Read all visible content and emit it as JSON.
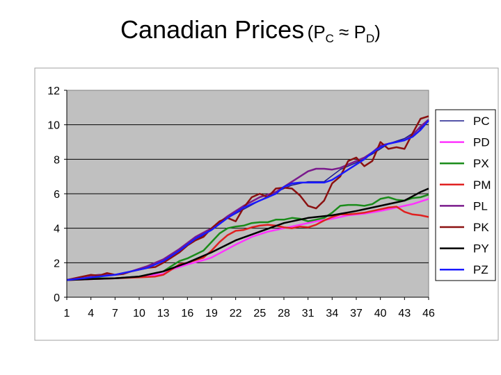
{
  "slide": {
    "title": "Canadian Prices",
    "subtitle_open": "(P",
    "subtitle_sub1": "C",
    "subtitle_approx": " ≈ P",
    "subtitle_sub2": "D",
    "subtitle_close": ")"
  },
  "chart_data": {
    "type": "line",
    "x_ticks": [
      "1",
      "4",
      "7",
      "10",
      "13",
      "16",
      "19",
      "22",
      "25",
      "28",
      "31",
      "34",
      "37",
      "40",
      "43",
      "46"
    ],
    "y_ticks": [
      "0",
      "2",
      "4",
      "6",
      "8",
      "10",
      "12"
    ],
    "ylim": [
      0,
      12
    ],
    "xlim": [
      1,
      46
    ],
    "grid": true,
    "legend_position": "right",
    "plot_background": "#c0c0c0",
    "series": [
      {
        "name": "PC",
        "color": "#1a1a8c",
        "width": 1.5,
        "x": [
          1,
          3,
          5,
          7,
          9,
          11,
          13,
          15,
          17,
          19,
          21,
          23,
          25,
          27,
          29,
          31,
          33,
          35,
          37,
          39,
          41,
          43,
          45,
          46
        ],
        "y": [
          1.0,
          1.1,
          1.2,
          1.3,
          1.5,
          1.7,
          2.1,
          2.7,
          3.3,
          3.9,
          4.6,
          5.1,
          5.6,
          6.1,
          6.5,
          6.7,
          6.7,
          7.4,
          7.8,
          8.3,
          8.9,
          9.2,
          9.8,
          10.2
        ]
      },
      {
        "name": "PD",
        "color": "#ff33ff",
        "width": 2.5,
        "x": [
          1,
          4,
          7,
          10,
          13,
          14,
          16,
          18,
          19,
          20,
          22,
          24,
          26,
          28,
          30,
          32,
          34,
          36,
          38,
          40,
          42,
          44,
          46
        ],
        "y": [
          1.0,
          1.05,
          1.1,
          1.2,
          1.35,
          1.6,
          1.9,
          2.15,
          2.3,
          2.55,
          3.05,
          3.5,
          3.8,
          4.0,
          4.2,
          4.4,
          4.55,
          4.75,
          4.85,
          5.0,
          5.2,
          5.4,
          5.7
        ]
      },
      {
        "name": "PX",
        "color": "#1a8c1a",
        "width": 2.5,
        "x": [
          1,
          4,
          7,
          10,
          12,
          13,
          14,
          15,
          16,
          18,
          19,
          20,
          21,
          22,
          23,
          24,
          25,
          26,
          27,
          28,
          29,
          30,
          31,
          32,
          33,
          34,
          35,
          36,
          37,
          38,
          39,
          40,
          41,
          42,
          43,
          44,
          45,
          46
        ],
        "y": [
          1.0,
          1.1,
          1.1,
          1.2,
          1.4,
          1.5,
          1.8,
          2.1,
          2.25,
          2.7,
          3.2,
          3.7,
          4.0,
          4.1,
          4.15,
          4.3,
          4.35,
          4.35,
          4.5,
          4.5,
          4.6,
          4.55,
          4.4,
          4.5,
          4.6,
          4.9,
          5.3,
          5.35,
          5.35,
          5.3,
          5.4,
          5.7,
          5.8,
          5.65,
          5.6,
          5.75,
          5.8,
          5.95
        ]
      },
      {
        "name": "PM",
        "color": "#e02020",
        "width": 2.5,
        "x": [
          1,
          4,
          7,
          10,
          12,
          13,
          14,
          15,
          16,
          18,
          19,
          20,
          21,
          22,
          23,
          24,
          25,
          26,
          27,
          28,
          29,
          30,
          31,
          32,
          33,
          34,
          35,
          36,
          37,
          38,
          39,
          40,
          41,
          42,
          43,
          44,
          45,
          46
        ],
        "y": [
          1.0,
          1.05,
          1.1,
          1.15,
          1.2,
          1.3,
          1.6,
          1.9,
          2.0,
          2.3,
          2.7,
          3.2,
          3.6,
          3.85,
          3.9,
          4.05,
          4.15,
          4.2,
          4.15,
          4.05,
          4.0,
          4.1,
          4.05,
          4.2,
          4.45,
          4.65,
          4.8,
          4.8,
          4.85,
          4.9,
          5.0,
          5.1,
          5.2,
          5.25,
          4.95,
          4.8,
          4.75,
          4.65
        ]
      },
      {
        "name": "PL",
        "color": "#7a1a8c",
        "width": 2.5,
        "x": [
          1,
          3,
          5,
          7,
          9,
          11,
          13,
          15,
          17,
          19,
          21,
          23,
          25,
          27,
          29,
          30,
          31,
          32,
          33,
          34,
          35,
          36,
          37,
          38,
          39,
          40,
          41,
          42,
          43,
          44,
          45,
          46
        ],
        "y": [
          1.0,
          1.2,
          1.3,
          1.3,
          1.5,
          1.8,
          2.2,
          2.8,
          3.5,
          4.0,
          4.7,
          5.3,
          5.8,
          6.1,
          6.7,
          7.0,
          7.3,
          7.45,
          7.45,
          7.4,
          7.5,
          7.7,
          7.9,
          8.1,
          8.4,
          8.8,
          8.9,
          9.0,
          9.1,
          9.4,
          9.9,
          10.3
        ]
      },
      {
        "name": "PK",
        "color": "#8b1010",
        "width": 2.5,
        "x": [
          1,
          3,
          4,
          5,
          6,
          7,
          8,
          9,
          10,
          11,
          12,
          13,
          14,
          15,
          16,
          17,
          18,
          19,
          20,
          21,
          22,
          23,
          24,
          25,
          26,
          27,
          28,
          29,
          30,
          31,
          32,
          33,
          34,
          35,
          36,
          37,
          38,
          39,
          40,
          41,
          42,
          43,
          44,
          45,
          46
        ],
        "y": [
          1.0,
          1.2,
          1.3,
          1.25,
          1.4,
          1.3,
          1.35,
          1.5,
          1.6,
          1.7,
          1.75,
          2.0,
          2.3,
          2.6,
          3.0,
          3.3,
          3.5,
          4.0,
          4.4,
          4.6,
          4.4,
          5.2,
          5.8,
          6.0,
          5.8,
          6.3,
          6.35,
          6.3,
          5.9,
          5.3,
          5.15,
          5.6,
          6.6,
          7.0,
          7.9,
          8.1,
          7.6,
          7.9,
          9.0,
          8.6,
          8.7,
          8.6,
          9.5,
          10.35,
          10.5
        ]
      },
      {
        "name": "PY",
        "color": "#000000",
        "width": 2.5,
        "x": [
          1,
          4,
          7,
          10,
          13,
          16,
          19,
          22,
          25,
          28,
          31,
          34,
          37,
          40,
          43,
          44,
          45,
          46
        ],
        "y": [
          1.0,
          1.05,
          1.1,
          1.2,
          1.5,
          2.0,
          2.6,
          3.3,
          3.8,
          4.3,
          4.6,
          4.75,
          5.0,
          5.3,
          5.6,
          5.85,
          6.1,
          6.3
        ]
      },
      {
        "name": "PZ",
        "color": "#1a1aff",
        "width": 2.5,
        "x": [
          1,
          3,
          5,
          7,
          9,
          11,
          13,
          15,
          17,
          19,
          21,
          23,
          25,
          27,
          28,
          29,
          30,
          31,
          32,
          33,
          34,
          35,
          36,
          37,
          38,
          39,
          40,
          41,
          42,
          43,
          44,
          45,
          46
        ],
        "y": [
          1.0,
          1.1,
          1.2,
          1.3,
          1.5,
          1.7,
          2.1,
          2.7,
          3.4,
          3.9,
          4.6,
          5.2,
          5.6,
          6.0,
          6.4,
          6.6,
          6.65,
          6.65,
          6.65,
          6.65,
          6.8,
          7.1,
          7.4,
          7.7,
          8.0,
          8.4,
          8.7,
          8.9,
          9.0,
          9.1,
          9.3,
          9.7,
          10.25
        ]
      }
    ]
  }
}
